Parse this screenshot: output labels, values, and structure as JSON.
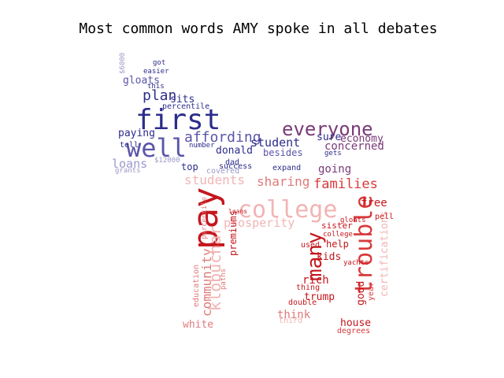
{
  "title": "Most common words AMY spoke in all debates",
  "colors": {
    "blue_dark": "#2c2c8c",
    "blue_mid": "#5a55a8",
    "blue_light": "#9a98c8",
    "purple": "#7a3a7a",
    "red_dark": "#c4161c",
    "red_mid": "#d83a3a",
    "pink": "#e07a7a",
    "pink_light": "#f2b4b4"
  },
  "words": [
    {
      "text": "first",
      "tone": "blue_dark"
    },
    {
      "text": "well",
      "tone": "blue_mid"
    },
    {
      "text": "everyone",
      "tone": "purple"
    },
    {
      "text": "affording",
      "tone": "blue_mid"
    },
    {
      "text": "plan",
      "tone": "blue_dark"
    },
    {
      "text": "gloats",
      "tone": "blue_mid"
    },
    {
      "text": "sits",
      "tone": "blue_dark"
    },
    {
      "text": "percentile",
      "tone": "blue_dark"
    },
    {
      "text": "paying",
      "tone": "blue_dark"
    },
    {
      "text": "loans",
      "tone": "blue_light"
    },
    {
      "text": "tell",
      "tone": "blue_dark"
    },
    {
      "text": "top",
      "tone": "blue_dark"
    },
    {
      "text": "grants",
      "tone": "blue_light"
    },
    {
      "text": "$12000",
      "tone": "blue_light"
    },
    {
      "text": "donald",
      "tone": "blue_dark"
    },
    {
      "text": "number",
      "tone": "blue_dark"
    },
    {
      "text": "student",
      "tone": "blue_dark"
    },
    {
      "text": "besides",
      "tone": "blue_mid"
    },
    {
      "text": "concerned",
      "tone": "purple"
    },
    {
      "text": "economy",
      "tone": "purple"
    },
    {
      "text": "sure",
      "tone": "blue_dark"
    },
    {
      "text": "going",
      "tone": "purple"
    },
    {
      "text": "families",
      "tone": "red_mid"
    },
    {
      "text": "sharing",
      "tone": "pink"
    },
    {
      "text": "students",
      "tone": "pink_light"
    },
    {
      "text": "dad",
      "tone": "blue_dark"
    },
    {
      "text": "success",
      "tone": "blue_dark"
    },
    {
      "text": "covered",
      "tone": "blue_light"
    },
    {
      "text": "expand",
      "tone": "blue_dark"
    },
    {
      "text": "got",
      "tone": "blue_dark"
    },
    {
      "text": "easier",
      "tone": "blue_dark"
    },
    {
      "text": "this",
      "tone": "blue_dark"
    },
    {
      "text": "$6000",
      "tone": "blue_light"
    },
    {
      "text": "gets",
      "tone": "blue_dark"
    },
    {
      "text": "pay",
      "tone": "red_dark"
    },
    {
      "text": "college",
      "tone": "pink_light"
    },
    {
      "text": "prosperity",
      "tone": "pink_light"
    },
    {
      "text": "trouble",
      "tone": "red_mid"
    },
    {
      "text": "many",
      "tone": "red_dark"
    },
    {
      "text": "free",
      "tone": "red_dark"
    },
    {
      "text": "community",
      "tone": "pink"
    },
    {
      "text": "klobuchar",
      "tone": "pink_light"
    },
    {
      "text": "premiums",
      "tone": "red_dark"
    },
    {
      "text": "kids",
      "tone": "red_dark"
    },
    {
      "text": "rich",
      "tone": "red_dark"
    },
    {
      "text": "trump",
      "tone": "red_dark"
    },
    {
      "text": "double",
      "tone": "red_dark"
    },
    {
      "text": "think",
      "tone": "pink"
    },
    {
      "text": "house",
      "tone": "red_dark"
    },
    {
      "text": "degrees",
      "tone": "red_mid"
    },
    {
      "text": "white",
      "tone": "pink"
    },
    {
      "text": "certifications",
      "tone": "pink_light"
    },
    {
      "text": "good",
      "tone": "red_dark"
    },
    {
      "text": "year",
      "tone": "red_mid"
    },
    {
      "text": "help",
      "tone": "red_dark"
    },
    {
      "text": "sister",
      "tone": "red_dark"
    },
    {
      "text": "used",
      "tone": "red_dark"
    },
    {
      "text": "thing",
      "tone": "red_dark"
    },
    {
      "text": "education",
      "tone": "pink"
    },
    {
      "text": "loans",
      "tone": "red_dark"
    },
    {
      "text": "third",
      "tone": "pink_light"
    },
    {
      "text": "gloats",
      "tone": "red_dark"
    },
    {
      "text": "pell",
      "tone": "red_dark"
    },
    {
      "text": "college",
      "tone": "red_dark"
    },
    {
      "text": "percentile",
      "tone": "pink"
    },
    {
      "text": "paths",
      "tone": "pink"
    },
    {
      "text": "yachts",
      "tone": "red_dark"
    }
  ]
}
